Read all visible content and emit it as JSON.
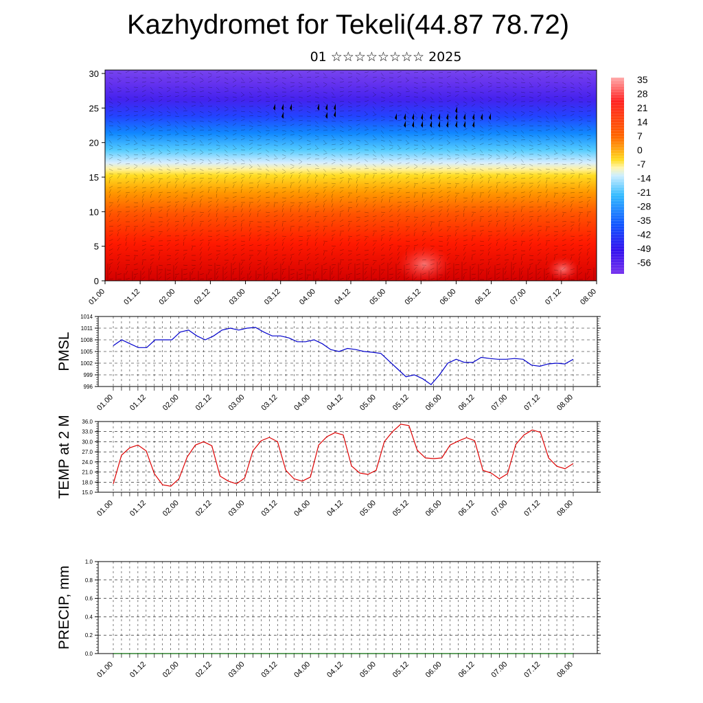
{
  "title": "Kazhydromet for Tekeli(44.87 78.72)",
  "subtitle": "01 ☆☆☆☆☆☆☆☆ 2025",
  "time_ticks": [
    "01.00",
    "01.12",
    "02.00",
    "02.12",
    "03.00",
    "03.12",
    "04.00",
    "04.12",
    "05.00",
    "05.12",
    "06.00",
    "06.12",
    "07.00",
    "07.12",
    "08.00"
  ],
  "chart_data": [
    {
      "type": "heatmap",
      "yticks": [
        0,
        5,
        10,
        15,
        20,
        25,
        30
      ],
      "ylim": [
        0,
        30.5
      ],
      "colorbar_labels": [
        "35",
        "28",
        "21",
        "14",
        "7",
        "0",
        "-7",
        "-14",
        "-21",
        "-28",
        "-35",
        "-42",
        "-49",
        "-56"
      ],
      "colors": {
        "warm": "#ff0000",
        "mid": "#ffee33",
        "cool": "#33ccff",
        "cold": "#2200ee"
      }
    },
    {
      "type": "line",
      "ylabel": "PMSL",
      "ylim": [
        996,
        1014
      ],
      "yticks": [
        "996",
        "999",
        "1002",
        "1005",
        "1008",
        "1011",
        "1014"
      ],
      "color": "#0000cc",
      "values": [
        1006.5,
        1008,
        1007,
        1006,
        1006,
        1008,
        1008,
        1008,
        1010,
        1010.5,
        1009,
        1008,
        1009,
        1010.5,
        1011,
        1010.5,
        1011,
        1011.2,
        1010,
        1009,
        1009,
        1008.5,
        1007.5,
        1007.5,
        1008,
        1007,
        1005.5,
        1005,
        1005.8,
        1005.5,
        1005,
        1004.8,
        1004.5,
        1002.5,
        1000.5,
        998.5,
        999,
        998,
        996.5,
        999,
        1002,
        1003,
        1002.2,
        1002.2,
        1003.5,
        1003.2,
        1003,
        1003,
        1003.2,
        1003,
        1001.5,
        1001.2,
        1001.8,
        1002,
        1001.8,
        1003
      ]
    },
    {
      "type": "line",
      "ylabel": "TEMP at 2 M",
      "ylim": [
        15,
        36
      ],
      "yticks": [
        "15.0",
        "18.0",
        "21.0",
        "24.0",
        "27.0",
        "30.0",
        "33.0",
        "36.0"
      ],
      "color": "#dd0000",
      "values": [
        17.5,
        26,
        28.2,
        29,
        27.3,
        20.5,
        17.2,
        16.8,
        19,
        25.5,
        29,
        30,
        28.8,
        19.8,
        18.3,
        17.5,
        19.2,
        27.3,
        30.3,
        31.3,
        30,
        21.5,
        19,
        18.3,
        19.5,
        29,
        31.5,
        32.7,
        32,
        22.8,
        20.7,
        20.3,
        21.5,
        30,
        33,
        35.2,
        34.8,
        27.5,
        25.2,
        25,
        25.2,
        29,
        30.2,
        31.2,
        30.3,
        21.5,
        20.7,
        19,
        20.5,
        29.2,
        32,
        33.5,
        32.8,
        25.2,
        22.7,
        22,
        23.5
      ]
    },
    {
      "type": "line",
      "ylabel": "PRECIP, mm",
      "ylim": [
        0,
        1
      ],
      "yticks": [
        "0.0",
        "0.2",
        "0.4",
        "0.6",
        "0.8",
        "1.0"
      ],
      "color": "#006600",
      "values": [
        0,
        0,
        0,
        0,
        0,
        0,
        0,
        0,
        0,
        0,
        0,
        0,
        0,
        0,
        0,
        0,
        0,
        0,
        0,
        0,
        0,
        0,
        0,
        0,
        0,
        0,
        0,
        0,
        0,
        0,
        0,
        0,
        0,
        0,
        0,
        0,
        0,
        0,
        0,
        0,
        0,
        0,
        0,
        0,
        0,
        0,
        0,
        0,
        0,
        0,
        0,
        0,
        0,
        0,
        0,
        0
      ]
    }
  ]
}
